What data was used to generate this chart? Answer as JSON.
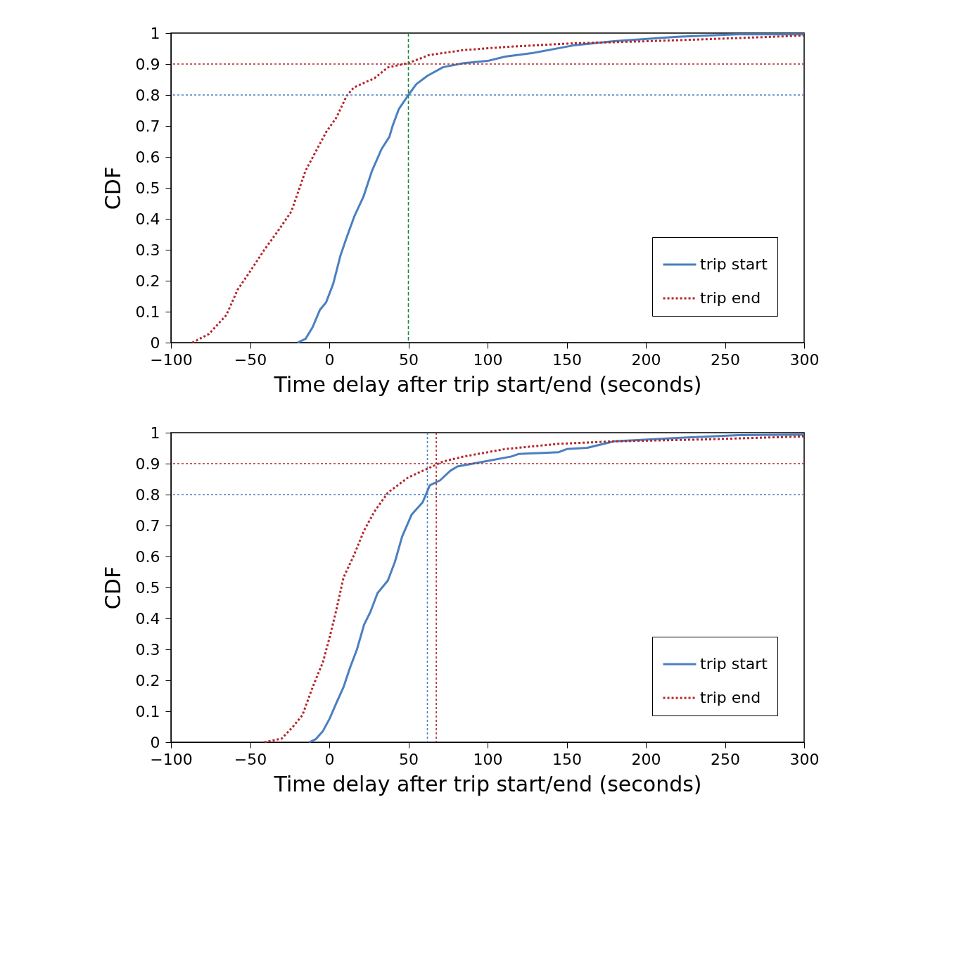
{
  "chart_data": [
    {
      "type": "line",
      "xlabel": "Time delay after trip start/end (seconds)",
      "ylabel": "CDF",
      "xlim": [
        -100,
        300
      ],
      "xticks": [
        -100,
        -50,
        0,
        50,
        100,
        150,
        200,
        250,
        300
      ],
      "ylim": [
        0,
        1
      ],
      "yticks": [
        0,
        0.1,
        0.2,
        0.3,
        0.4,
        0.5,
        0.6,
        0.7,
        0.8,
        0.9,
        1
      ],
      "grid": false,
      "legend": "bottom right",
      "marker": "none",
      "series": [
        {
          "name": "trip start",
          "color": "#4a7fc1",
          "line_style": "solid",
          "x": [
            -20,
            -15,
            -10.5,
            -6,
            -2,
            2.5,
            7,
            11,
            16,
            21.5,
            27,
            33,
            38,
            40,
            44,
            50,
            55,
            62,
            72,
            85,
            100,
            111,
            128,
            154,
            180,
            220,
            258,
            300
          ],
          "values": [
            0,
            0.012,
            0.05,
            0.105,
            0.13,
            0.19,
            0.28,
            0.34,
            0.41,
            0.47,
            0.555,
            0.625,
            0.665,
            0.7,
            0.755,
            0.8,
            0.835,
            0.862,
            0.89,
            0.903,
            0.91,
            0.924,
            0.935,
            0.96,
            0.974,
            0.988,
            0.996,
            0.996
          ]
        },
        {
          "name": "trip end",
          "color": "#b5262b",
          "line_style": "dotted",
          "x": [
            -86.5,
            -76,
            -65,
            -58,
            -50,
            -41,
            -32.5,
            -24,
            -15,
            -7,
            -2,
            4.5,
            11,
            15.5,
            28.5,
            37,
            50,
            63,
            85,
            111,
            150,
            215,
            259,
            300
          ],
          "values": [
            0,
            0.028,
            0.089,
            0.17,
            0.23,
            0.3,
            0.36,
            0.423,
            0.555,
            0.632,
            0.68,
            0.727,
            0.797,
            0.824,
            0.854,
            0.889,
            0.903,
            0.929,
            0.945,
            0.955,
            0.966,
            0.976,
            0.984,
            0.992
          ]
        }
      ],
      "ref_lines": [
        {
          "axis": "y",
          "value": 0.9,
          "color": "#b5262b",
          "line_style": "dotted"
        },
        {
          "axis": "y",
          "value": 0.8,
          "color": "#4a7fc1",
          "line_style": "dotted"
        },
        {
          "axis": "x",
          "value": 50,
          "color": "#1a8a3a",
          "line_style": "dashed"
        }
      ]
    },
    {
      "type": "line",
      "xlabel": "Time delay after trip start/end (seconds)",
      "ylabel": "CDF",
      "xlim": [
        -100,
        300
      ],
      "xticks": [
        -100,
        -50,
        0,
        50,
        100,
        150,
        200,
        250,
        300
      ],
      "ylim": [
        0,
        1
      ],
      "yticks": [
        0,
        0.1,
        0.2,
        0.3,
        0.4,
        0.5,
        0.6,
        0.7,
        0.8,
        0.9,
        1
      ],
      "grid": false,
      "legend": "bottom right",
      "marker": "none",
      "series": [
        {
          "name": "trip start",
          "color": "#4a7fc1",
          "line_style": "solid",
          "x": [
            -12.7,
            -8.5,
            -4,
            0.3,
            4.6,
            9,
            13,
            17.5,
            22,
            26,
            30.5,
            37,
            41.5,
            46,
            52,
            59,
            63.5,
            70,
            76.5,
            81,
            98,
            115,
            119.5,
            145,
            150,
            163,
            180,
            224,
            259,
            300
          ],
          "values": [
            0,
            0.01,
            0.036,
            0.077,
            0.128,
            0.178,
            0.239,
            0.3,
            0.38,
            0.421,
            0.482,
            0.522,
            0.583,
            0.664,
            0.735,
            0.775,
            0.83,
            0.846,
            0.877,
            0.891,
            0.907,
            0.923,
            0.931,
            0.937,
            0.947,
            0.951,
            0.972,
            0.984,
            0.992,
            0.994
          ]
        },
        {
          "name": "trip end",
          "color": "#b5262b",
          "line_style": "dotted",
          "x": [
            -41,
            -30,
            -23.5,
            -17,
            -10.5,
            -4,
            0.3,
            4.6,
            9,
            15.5,
            22,
            28.5,
            37,
            50,
            63.5,
            72,
            85,
            111,
            145,
            180,
            236,
            300
          ],
          "values": [
            0,
            0.012,
            0.047,
            0.087,
            0.178,
            0.259,
            0.34,
            0.43,
            0.532,
            0.603,
            0.684,
            0.745,
            0.806,
            0.856,
            0.887,
            0.907,
            0.923,
            0.947,
            0.964,
            0.972,
            0.978,
            0.988
          ]
        }
      ],
      "ref_lines": [
        {
          "axis": "y",
          "value": 0.9,
          "color": "#b5262b",
          "line_style": "dotted"
        },
        {
          "axis": "y",
          "value": 0.8,
          "color": "#4a7fc1",
          "line_style": "dotted"
        },
        {
          "axis": "x",
          "value": 62,
          "color": "#4a7fc1",
          "line_style": "dotted"
        },
        {
          "axis": "x",
          "value": 67.6,
          "color": "#b5262b",
          "line_style": "dotted"
        }
      ]
    }
  ]
}
